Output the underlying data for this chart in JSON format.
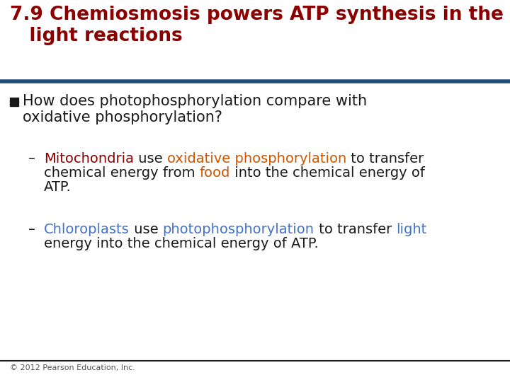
{
  "title_line1": "7.9 Chemiosmosis powers ATP synthesis in the",
  "title_line2": "   light reactions",
  "title_color": "#8B0000",
  "title_fontsize": 19,
  "separator_color": "#1F4E79",
  "separator_thickness": 4,
  "body_color": "#1A1A1A",
  "body_fontsize": 14,
  "bullet_fontsize": 15,
  "red_color": "#8B0000",
  "orange_color": "#CC5500",
  "blue_color": "#4472C4",
  "background_color": "#FFFFFF",
  "footer_text": "© 2012 Pearson Education, Inc.",
  "footer_fontsize": 8,
  "footer_color": "#555555",
  "footer_line_color": "#1A1A1A"
}
